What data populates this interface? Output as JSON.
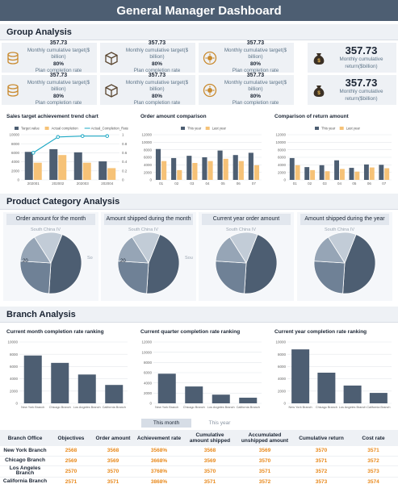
{
  "title": "General Manager Dashboard",
  "colors": {
    "dark": "#4d5e72",
    "orange": "#f6c277",
    "teal": "#1ca8c4",
    "light": "#c9d1db"
  },
  "group": {
    "heading": "Group Analysis",
    "cards": [
      {
        "value": "357.73",
        "label": "Monthly cumulative target($ billion)",
        "pct": "80%",
        "pct_label": "Plan completion rate",
        "icon": "database-icon"
      },
      {
        "value": "357.73",
        "label": "Monthly cumulative target($ billion)",
        "pct": "80%",
        "pct_label": "Plan completion rate",
        "icon": "box-icon"
      },
      {
        "value": "357.73",
        "label": "Monthly cumulative target($ billion)",
        "pct": "80%",
        "pct_label": "Plan completion rate",
        "icon": "sun-coin-icon"
      },
      {
        "value": "357.73",
        "label": "Monthly cumulative return($billion)",
        "icon": "money-bag-icon"
      },
      {
        "value": "357.73",
        "label": "Monthly cumulative target($ billion)",
        "pct": "80%",
        "pct_label": "Plan completion rate",
        "icon": "database-icon"
      },
      {
        "value": "357.73",
        "label": "Monthly cumulative target($ billion)",
        "pct": "80%",
        "pct_label": "Plan completion rate",
        "icon": "box-icon"
      },
      {
        "value": "357.73",
        "label": "Monthly cumulative target($ billion)",
        "pct": "80%",
        "pct_label": "Plan completion rate",
        "icon": "sun-coin-icon"
      },
      {
        "value": "357.73",
        "label": "Monthly cumulative return($billion)",
        "icon": "money-bag-icon"
      }
    ]
  },
  "product": {
    "heading": "Product Category Analysis",
    "pies": [
      {
        "title": "Order amount for the month",
        "slices": [
          45,
          25,
          15,
          15
        ],
        "labels": [
          "South China IV",
          "So",
          "",
          "20"
        ]
      },
      {
        "title": "Amount shipped during the month",
        "slices": [
          45,
          25,
          15,
          15
        ],
        "labels": [
          "South China IV",
          "Sou",
          "",
          "20"
        ]
      },
      {
        "title": "Current year order amount",
        "slices": [
          45,
          25,
          15,
          15
        ],
        "labels": [
          "South China IV",
          "",
          "",
          ""
        ]
      },
      {
        "title": "Amount shipped during the year",
        "slices": [
          45,
          25,
          15,
          15
        ],
        "labels": [
          "South China IV",
          "",
          "",
          ""
        ]
      }
    ]
  },
  "branch": {
    "heading": "Branch Analysis",
    "tabs": [
      "This month",
      "This year"
    ],
    "columns": [
      "Branch Office",
      "Objectives",
      "Order amount",
      "Achievement rate",
      "Cumulative amount shipped",
      "Accumulated unshipped amount",
      "Cumulative return",
      "Cost rate"
    ],
    "rows": [
      [
        "New York Branch",
        "2568",
        "3568",
        "3568%",
        "3568",
        "3569",
        "3570",
        "3571"
      ],
      [
        "Chicago Branch",
        "2569",
        "3569",
        "3668%",
        "3569",
        "3570",
        "3571",
        "3572"
      ],
      [
        "Los Angeles Branch",
        "2570",
        "3570",
        "3768%",
        "3570",
        "3571",
        "3572",
        "3573"
      ],
      [
        "California Branch",
        "2571",
        "3571",
        "3868%",
        "3571",
        "3572",
        "3573",
        "3574"
      ]
    ]
  },
  "chart_data": [
    {
      "type": "bar",
      "title": "Sales target achievement trend chart",
      "categories": [
        "202001",
        "202002",
        "202003",
        "202004"
      ],
      "series": [
        {
          "name": "Target value",
          "type": "bar",
          "values": [
            6200,
            6800,
            6100,
            4100
          ]
        },
        {
          "name": "Actual completion",
          "type": "bar",
          "values": [
            3800,
            5500,
            3800,
            2600
          ]
        },
        {
          "name": "Actual_Completion_Rate",
          "type": "line",
          "axis": "right",
          "values": [
            0.6,
            0.95,
            0.97,
            0.97
          ]
        }
      ],
      "ylim": [
        0,
        10000
      ],
      "y2lim": [
        0,
        1
      ],
      "yticks": [
        "10000",
        "8000",
        "6000",
        "4000",
        "2000",
        "0"
      ],
      "y2ticks": [
        "1",
        "0.8",
        "0.6",
        "0.4",
        "0.2",
        "0"
      ]
    },
    {
      "type": "bar",
      "title": "Order amount comparison",
      "categories": [
        "01",
        "02",
        "03",
        "04",
        "05",
        "06",
        "07"
      ],
      "series": [
        {
          "name": "This year",
          "values": [
            8200,
            5800,
            6400,
            6000,
            7800,
            6600,
            7200
          ]
        },
        {
          "name": "Last year",
          "values": [
            5000,
            2600,
            4500,
            5000,
            5600,
            5000,
            3900
          ]
        }
      ],
      "ylim": [
        0,
        12000
      ],
      "yticks": [
        "12000",
        "10000",
        "8000",
        "6000",
        "4000",
        "2000",
        "0"
      ]
    },
    {
      "type": "bar",
      "title": "Comparison of return amount",
      "categories": [
        "01",
        "02",
        "03",
        "04",
        "05",
        "06",
        "07"
      ],
      "series": [
        {
          "name": "This year",
          "values": [
            5800,
            3400,
            3900,
            5200,
            3200,
            4100,
            4000
          ]
        },
        {
          "name": "Last year",
          "values": [
            3900,
            2600,
            2300,
            2900,
            2200,
            3300,
            3100
          ]
        }
      ],
      "ylim": [
        0,
        12000
      ],
      "yticks": [
        "12000",
        "10000",
        "8000",
        "6000",
        "4000",
        "2000",
        "0"
      ]
    },
    {
      "type": "bar",
      "title": "Current month completion rate ranking",
      "categories": [
        "New York Branch",
        "Chicago Branch",
        "Los Angeles Branch",
        "California Branch"
      ],
      "values": [
        7800,
        6600,
        4700,
        3000
      ],
      "ylim": [
        0,
        10000
      ],
      "yticks": [
        "10000",
        "8000",
        "6000",
        "4000",
        "2000",
        "0"
      ]
    },
    {
      "type": "bar",
      "title": "Current quarter completion rate ranking",
      "categories": [
        "New York Branch",
        "Chicago Branch",
        "Los Angeles Branch",
        "California Branch"
      ],
      "values": [
        5800,
        3300,
        1700,
        1100
      ],
      "ylim": [
        0,
        12000
      ],
      "yticks": [
        "12000",
        "10000",
        "8000",
        "6000",
        "4000",
        "2000",
        "0"
      ]
    },
    {
      "type": "bar",
      "title": "Current year completion rate ranking",
      "categories": [
        "New York Branch",
        "Chicago Branch",
        "Los Angeles Branch",
        "California Branch"
      ],
      "values": [
        8800,
        5000,
        2900,
        1700
      ],
      "ylim": [
        0,
        10000
      ],
      "yticks": [
        "10000",
        "8000",
        "6000",
        "4000",
        "2000",
        "0"
      ]
    }
  ]
}
